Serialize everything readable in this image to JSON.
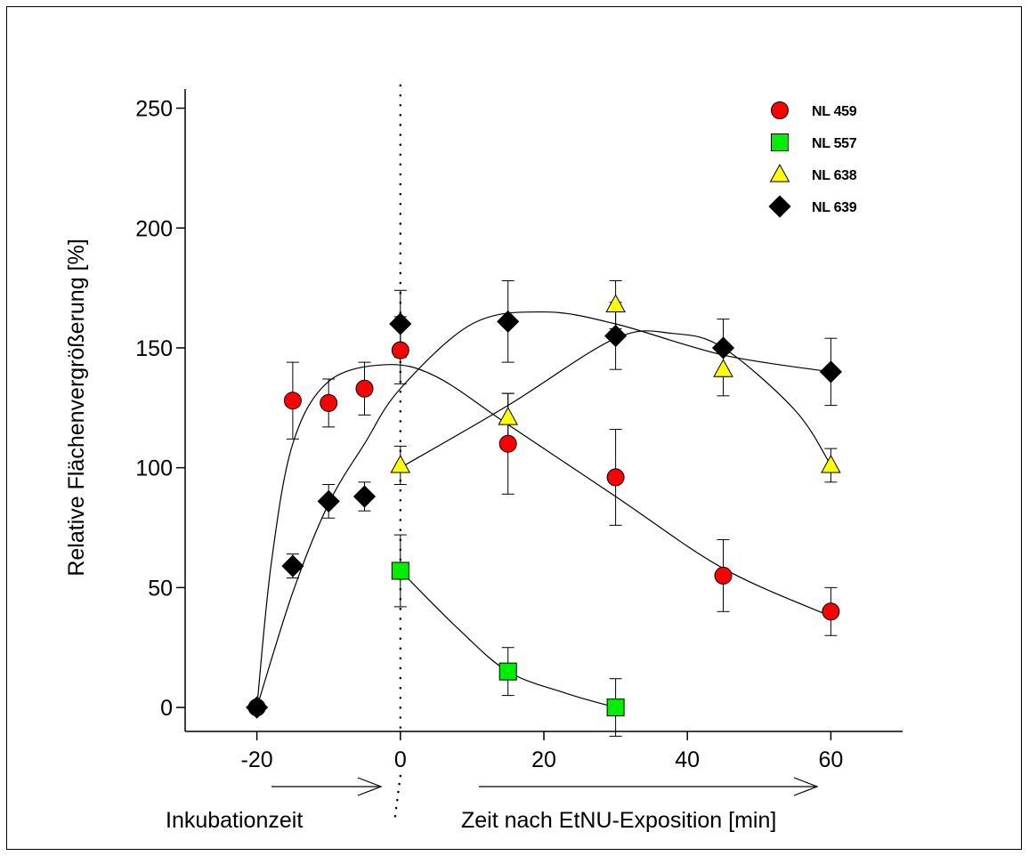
{
  "chart_data": {
    "type": "scatter",
    "title": "",
    "xlabel": "Zeit nach EtNU-Exposition [min]",
    "xlabel_left": "Inkubationzeit",
    "ylabel": "Relative Flächenvergrößerung [%]",
    "xlim": [
      -30,
      70
    ],
    "ylim": [
      -10,
      258
    ],
    "xticks": [
      -20,
      0,
      20,
      40,
      60
    ],
    "yticks": [
      0,
      50,
      100,
      150,
      200,
      250
    ],
    "grid": false,
    "legend_position": "top-right",
    "reference_line": {
      "x": 0,
      "style": "dotted"
    },
    "series": [
      {
        "name": "NL 459",
        "marker": "circle",
        "color": "#ff0000",
        "x": [
          -20,
          -15,
          -10,
          -5,
          0,
          15,
          30,
          45,
          60
        ],
        "y": [
          0,
          128,
          127,
          133,
          149,
          110,
          96,
          55,
          40
        ],
        "error": [
          0,
          16,
          10,
          11,
          14,
          21,
          20,
          15,
          10
        ]
      },
      {
        "name": "NL 557",
        "marker": "square",
        "color": "#00ee00",
        "x": [
          0,
          15,
          30
        ],
        "y": [
          57,
          15,
          0
        ],
        "error": [
          15,
          10,
          12
        ]
      },
      {
        "name": "NL 638",
        "marker": "triangle",
        "color": "#ffff00",
        "x": [
          0,
          15,
          30,
          45,
          60
        ],
        "y": [
          101,
          121,
          168,
          141,
          101
        ],
        "error": [
          8,
          10,
          10,
          11,
          7
        ]
      },
      {
        "name": "NL 639",
        "marker": "diamond",
        "color": "#000000",
        "x": [
          -20,
          -15,
          -10,
          -5,
          0,
          15,
          30,
          45,
          60
        ],
        "y": [
          0,
          59,
          86,
          88,
          160,
          161,
          155,
          150,
          140
        ],
        "error": [
          0,
          5,
          7,
          6,
          14,
          17,
          14,
          12,
          14
        ]
      }
    ]
  }
}
